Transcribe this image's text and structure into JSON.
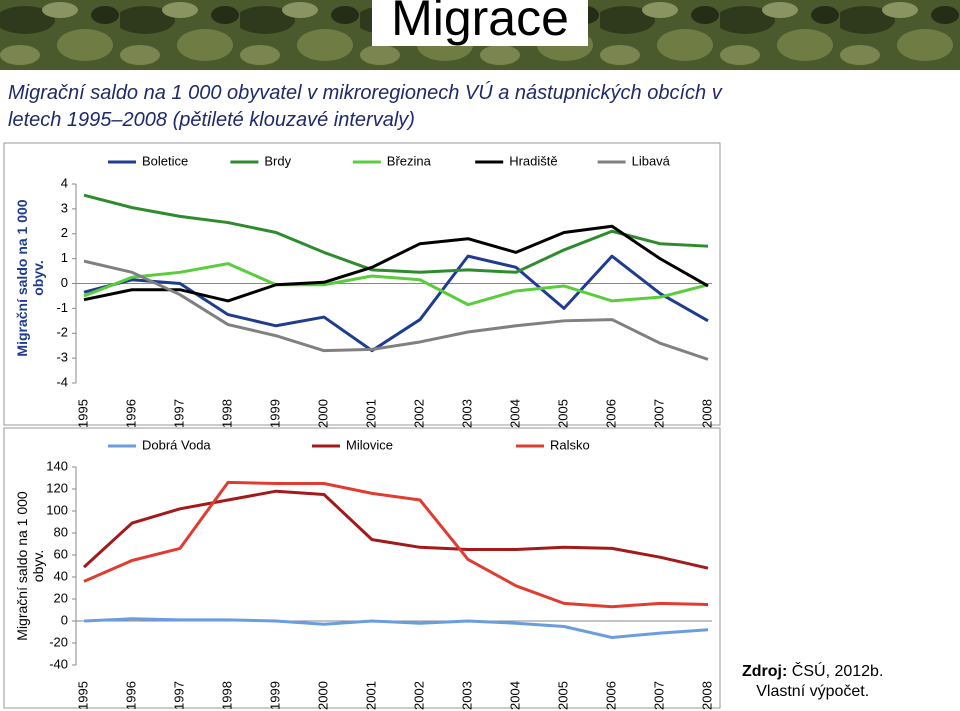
{
  "header": {
    "title": "Migrace",
    "subtitle": "Migrační saldo na 1 000 obyvatel v mikroregionech VÚ a nástupnických obcích v letech 1995–2008 (pětileté klouzavé intervaly)"
  },
  "chart_data": [
    {
      "type": "line",
      "y_label": "Migrační saldo na 1 000 obyv.",
      "categories": [
        "1995",
        "1996",
        "1997",
        "1998",
        "1999",
        "2000",
        "2001",
        "2002",
        "2003",
        "2004",
        "2005",
        "2006",
        "2007",
        "2008"
      ],
      "ylim": [
        -4,
        4
      ],
      "yticks": [
        -4,
        -3,
        -2,
        -1,
        0,
        1,
        2,
        3,
        4
      ],
      "grid": false,
      "series": [
        {
          "name": "Boletice",
          "color": "#1f3c91",
          "values": [
            -0.35,
            0.15,
            0.0,
            -1.25,
            -1.7,
            -1.35,
            -2.7,
            -1.45,
            1.1,
            0.65,
            -1.0,
            1.1,
            -0.4,
            -1.5
          ]
        },
        {
          "name": "Brdy",
          "color": "#2e8b2e",
          "values": [
            3.55,
            3.05,
            2.7,
            2.45,
            2.05,
            1.25,
            0.55,
            0.45,
            0.55,
            0.45,
            1.35,
            2.1,
            1.6,
            1.5
          ]
        },
        {
          "name": "Březina",
          "color": "#5acd3c",
          "values": [
            -0.5,
            0.25,
            0.45,
            0.8,
            -0.05,
            -0.05,
            0.3,
            0.15,
            -0.85,
            -0.3,
            -0.1,
            -0.7,
            -0.55,
            -0.05
          ]
        },
        {
          "name": "Hradiště",
          "color": "#000000",
          "values": [
            -0.65,
            -0.25,
            -0.25,
            -0.7,
            -0.05,
            0.05,
            0.65,
            1.6,
            1.8,
            1.25,
            2.05,
            2.3,
            1.0,
            -0.1
          ]
        },
        {
          "name": "Libavá",
          "color": "#808080",
          "values": [
            0.9,
            0.45,
            -0.45,
            -1.65,
            -2.1,
            -2.7,
            -2.65,
            -2.35,
            -1.95,
            -1.7,
            -1.5,
            -1.45,
            -2.4,
            -3.05
          ]
        }
      ]
    },
    {
      "type": "line",
      "y_label": "Migrační saldo na 1 000 obyv.",
      "categories": [
        "1995",
        "1996",
        "1997",
        "1998",
        "1999",
        "2000",
        "2001",
        "2002",
        "2003",
        "2004",
        "2005",
        "2006",
        "2007",
        "2008"
      ],
      "ylim": [
        -40,
        140
      ],
      "yticks": [
        -40,
        -20,
        0,
        20,
        40,
        60,
        80,
        100,
        120,
        140
      ],
      "grid": false,
      "series": [
        {
          "name": "Dobrá Voda",
          "color": "#6a9de0",
          "values": [
            0,
            2,
            1,
            1,
            0,
            -3,
            0,
            -2,
            0,
            -2,
            -5,
            -15,
            -11,
            -8
          ]
        },
        {
          "name": "Milovice",
          "color": "#a31a1a",
          "values": [
            49,
            89,
            102,
            110,
            118,
            115,
            74,
            67,
            65,
            65,
            67,
            66,
            58,
            48
          ]
        },
        {
          "name": "Ralsko",
          "color": "#e03c31",
          "values": [
            36,
            55,
            66,
            126,
            125,
            125,
            116,
            110,
            56,
            32,
            16,
            13,
            16,
            15
          ]
        }
      ]
    }
  ],
  "source": {
    "label": "Zdroj:",
    "text": "ČSÚ, 2012b.",
    "note": "Vlastní výpočet."
  }
}
